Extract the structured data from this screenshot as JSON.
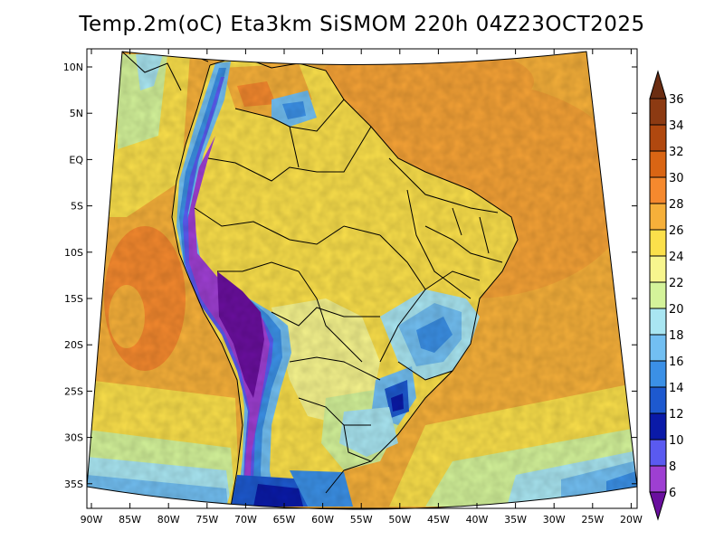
{
  "title": "Temp.2m(oC) Eta3km SiSMOM 220h 04Z23OCT2025",
  "lat_labels": [
    "10N",
    "5N",
    "EQ",
    "5S",
    "10S",
    "15S",
    "20S",
    "25S",
    "30S",
    "35S"
  ],
  "lon_labels": [
    "90W",
    "85W",
    "80W",
    "75W",
    "70W",
    "65W",
    "60W",
    "55W",
    "50W",
    "45W",
    "40W",
    "35W",
    "30W",
    "25W",
    "20W"
  ],
  "colorbar": {
    "labels": [
      "36",
      "34",
      "32",
      "30",
      "28",
      "26",
      "24",
      "22",
      "20",
      "18",
      "16",
      "14",
      "12",
      "10",
      "8",
      "6"
    ],
    "colors": [
      "#6b2d12",
      "#8c3a12",
      "#b0480f",
      "#d96514",
      "#f5892e",
      "#f6b03a",
      "#fbe04b",
      "#f7f58e",
      "#d4f39a",
      "#a9e6f2",
      "#72bff2",
      "#3b90e6",
      "#1d59cf",
      "#0a1aa8",
      "#5a5af0",
      "#9e3fd2",
      "#6a0f9e"
    ]
  },
  "chart_data": {
    "type": "heatmap",
    "title": "Temp.2m(oC) Eta3km SiSMOM 220h 04Z23OCT2025",
    "variable": "Temp.2m(oC)",
    "model": "Eta3km SiSMOM",
    "forecast_hour": "220h",
    "valid_time": "04Z23OCT2025",
    "lon_range": [
      -91,
      -20
    ],
    "lat_range": [
      -38,
      11
    ],
    "colorbar_levels": [
      6,
      8,
      10,
      12,
      14,
      16,
      18,
      20,
      22,
      24,
      26,
      28,
      30,
      32,
      34,
      36
    ],
    "colorbar_unit": "oC"
  }
}
